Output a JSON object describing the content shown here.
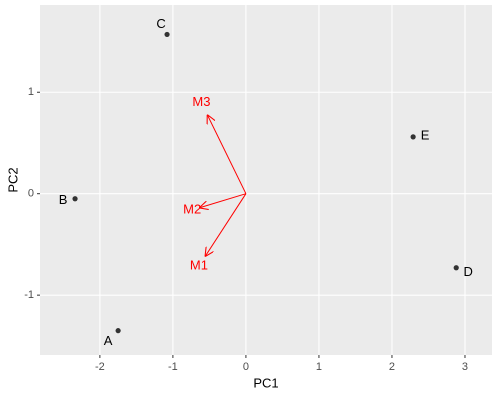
{
  "chart_data": {
    "type": "scatter",
    "xlabel": "PC1",
    "ylabel": "PC2",
    "xlim": [
      -2.82,
      3.37
    ],
    "ylim": [
      -1.59,
      1.86
    ],
    "xticks": [
      -2,
      -1,
      0,
      1,
      2,
      3
    ],
    "yticks": [
      -1,
      0,
      1
    ],
    "grid": true,
    "points": {
      "labels": [
        "A",
        "B",
        "C",
        "D",
        "E"
      ],
      "x": [
        -1.75,
        -2.34,
        -1.08,
        2.88,
        2.29
      ],
      "y": [
        -1.35,
        -0.05,
        1.57,
        -0.73,
        0.56
      ],
      "color": "#333333"
    },
    "arrows": {
      "labels": [
        "M1",
        "M2",
        "M3"
      ],
      "x": [
        -0.56,
        -0.64,
        -0.53
      ],
      "y": [
        -0.62,
        -0.14,
        0.78
      ],
      "color": "#ff0000"
    }
  }
}
